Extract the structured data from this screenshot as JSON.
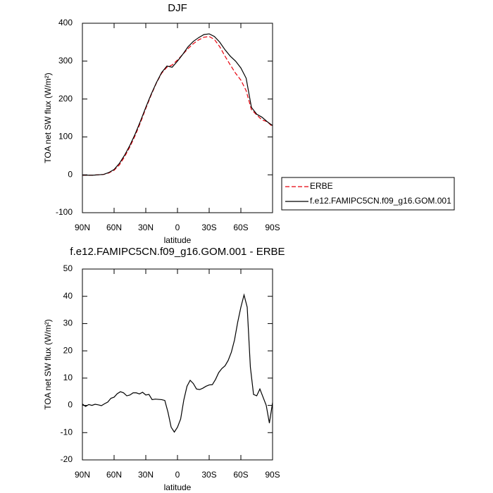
{
  "chart_data": [
    {
      "type": "line",
      "title": "DJF",
      "x_label": "latitude",
      "y_label": "TOA net SW flux (W/m²)",
      "x": [
        90,
        85,
        80,
        75,
        70,
        65,
        60,
        55,
        50,
        45,
        40,
        35,
        30,
        25,
        20,
        15,
        10,
        5,
        0,
        -5,
        -10,
        -15,
        -20,
        -25,
        -30,
        -35,
        -40,
        -45,
        -50,
        -55,
        -60,
        -65,
        -70,
        -75,
        -80,
        -85,
        -90
      ],
      "series": [
        {
          "name": "ERBE",
          "color": "#e8000b",
          "dash": "dashed",
          "values": [
            -1,
            -1,
            -1,
            0,
            1,
            5,
            12,
            26,
            48,
            74,
            104,
            138,
            175,
            210,
            242,
            268,
            284,
            290,
            303,
            318,
            333,
            346,
            356,
            363,
            365,
            357,
            338,
            313,
            290,
            268,
            250,
            222,
            172,
            158,
            145,
            140,
            127
          ]
        },
        {
          "name": "f.e12.FAMIPC5CN.f09_g16.GOM.001",
          "color": "#000000",
          "dash": "solid",
          "values": [
            -1,
            -1,
            -1,
            0,
            1,
            6,
            14,
            30,
            52,
            78,
            108,
            142,
            178,
            212,
            243,
            270,
            287,
            284,
            300,
            318,
            338,
            352,
            362,
            370,
            372,
            365,
            350,
            330,
            313,
            300,
            282,
            255,
            178,
            160,
            152,
            140,
            130
          ]
        }
      ],
      "xlim": [
        90,
        -90
      ],
      "xticks": [
        {
          "value": 90,
          "label": "90N"
        },
        {
          "value": 60,
          "label": "60N"
        },
        {
          "value": 30,
          "label": "30N"
        },
        0,
        {
          "value": -30,
          "label": "30S"
        },
        {
          "value": -60,
          "label": "60S"
        },
        {
          "value": -90,
          "label": "90S"
        }
      ],
      "ylim": [
        -100,
        400
      ],
      "yticks": [
        -100,
        0,
        100,
        200,
        300,
        400
      ],
      "legend": "right"
    },
    {
      "type": "line",
      "title": "f.e12.FAMIPC5CN.f09_g16.GOM.001 - ERBE",
      "x_label": "latitude",
      "y_label": "TOA net SW flux (W/m²)",
      "x": [
        90,
        87,
        84,
        81,
        78,
        75,
        72,
        69,
        66,
        63,
        60,
        57,
        54,
        51,
        48,
        45,
        42,
        39,
        36,
        33,
        30,
        27,
        24,
        21,
        18,
        15,
        12,
        9,
        6,
        3,
        0,
        -3,
        -6,
        -9,
        -12,
        -15,
        -18,
        -21,
        -24,
        -27,
        -30,
        -33,
        -36,
        -39,
        -42,
        -45,
        -48,
        -51,
        -54,
        -57,
        -60,
        -63,
        -66,
        -69,
        -72,
        -75,
        -78,
        -81,
        -84,
        -87,
        -90
      ],
      "series": [
        {
          "color": "#000000",
          "dash": "solid",
          "values": [
            0.5,
            -0.4,
            0.3,
            0,
            0.4,
            0.2,
            -0.1,
            0.6,
            1.2,
            2.6,
            3,
            4.3,
            5,
            4.6,
            3.5,
            3.8,
            4.6,
            4.6,
            4.2,
            4.8,
            3.8,
            4,
            2.1,
            2.3,
            2.2,
            2.1,
            1.8,
            -2.5,
            -8,
            -9.8,
            -8,
            -5,
            2,
            7,
            9.2,
            8,
            6,
            5.8,
            6.3,
            7,
            7.5,
            7.6,
            9.5,
            12,
            13.5,
            14.5,
            16.5,
            19.5,
            24,
            30.5,
            36,
            40.5,
            36,
            14,
            4,
            3.5,
            6,
            3,
            0,
            -6.5,
            1
          ]
        }
      ],
      "xlim": [
        90,
        -90
      ],
      "xticks": [
        {
          "value": 90,
          "label": "90N"
        },
        {
          "value": 60,
          "label": "60N"
        },
        {
          "value": 30,
          "label": "30N"
        },
        0,
        {
          "value": -30,
          "label": "30S"
        },
        {
          "value": -60,
          "label": "60S"
        },
        {
          "value": -90,
          "label": "90S"
        }
      ],
      "ylim": [
        -20,
        50
      ],
      "yticks": [
        -20,
        -10,
        0,
        10,
        20,
        30,
        40,
        50
      ]
    }
  ]
}
